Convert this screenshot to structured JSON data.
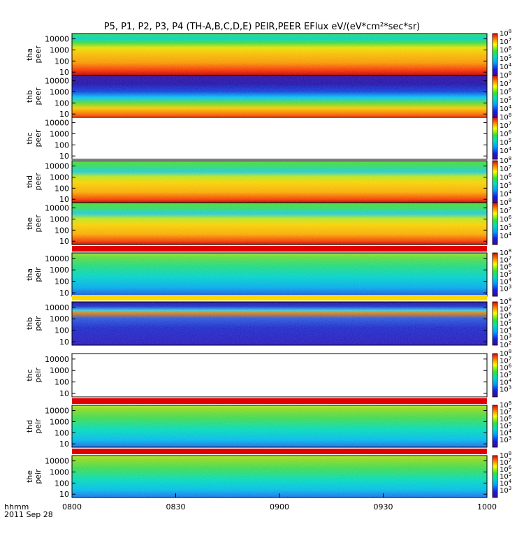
{
  "title": "P5, P1, P2, P3, P4 (TH-A,B,C,D,E) PEIR,PEER EFlux eV/(eV*cm²*sec*sr)",
  "chart_data": {
    "type": "heatmap",
    "time_axis": {
      "label": "hhmm",
      "date": "2011 Sep 28",
      "range": [
        "0800",
        "1000"
      ],
      "ticks": [
        "0800",
        "0830",
        "0900",
        "0930",
        "1000"
      ]
    },
    "energy_axis": {
      "scale": "log",
      "range_eV": [
        5,
        30000
      ],
      "ticks": [
        "10",
        "100",
        "1000",
        "10000"
      ]
    },
    "colormap": "rainbow (purple-blue-cyan-green-yellow-red)",
    "panels": [
      {
        "probe": "tha",
        "species": "peer",
        "label": "tha\npeer",
        "colorbar_log_range": [
          3,
          8
        ],
        "colorbar_ticks": [
          "10^4",
          "10^5",
          "10^6",
          "10^7",
          "10^8"
        ],
        "fill": "present"
      },
      {
        "probe": "thb",
        "species": "peer",
        "label": "thb\npeer",
        "colorbar_log_range": [
          3,
          8
        ],
        "colorbar_ticks": [
          "10^4",
          "10^5",
          "10^6",
          "10^7",
          "10^8"
        ],
        "fill": "present"
      },
      {
        "probe": "thc",
        "species": "peer",
        "label": "thc\npeer",
        "colorbar_log_range": [
          3,
          8
        ],
        "colorbar_ticks": [
          "10^4",
          "10^5",
          "10^6",
          "10^7",
          "10^8"
        ],
        "fill": "empty"
      },
      {
        "probe": "thd",
        "species": "peer",
        "label": "thd\npeer",
        "colorbar_log_range": [
          3,
          8
        ],
        "colorbar_ticks": [
          "10^4",
          "10^5",
          "10^6",
          "10^7",
          "10^8"
        ],
        "fill": "present"
      },
      {
        "probe": "the",
        "species": "peer",
        "label": "the\npeer",
        "colorbar_log_range": [
          3,
          8
        ],
        "colorbar_ticks": [
          "10^4",
          "10^5",
          "10^6",
          "10^7",
          "10^8"
        ],
        "fill": "present"
      },
      {
        "probe": "tha",
        "species": "peir",
        "label": "tha\npeir",
        "colorbar_log_range": [
          2,
          8
        ],
        "colorbar_ticks": [
          "10^3",
          "10^4",
          "10^5",
          "10^6",
          "10^7",
          "10^8"
        ],
        "fill": "present"
      },
      {
        "probe": "thb",
        "species": "peir",
        "label": "thb\npeir",
        "colorbar_log_range": [
          2,
          8
        ],
        "colorbar_ticks": [
          "10^2",
          "10^3",
          "10^4",
          "10^5",
          "10^6",
          "10^7",
          "10^8"
        ],
        "fill": "present"
      },
      {
        "probe": "thc",
        "species": "peir",
        "label": "thc\npeir",
        "colorbar_log_range": [
          2,
          8
        ],
        "colorbar_ticks": [
          "10^3",
          "10^4",
          "10^5",
          "10^6",
          "10^7",
          "10^8"
        ],
        "fill": "empty"
      },
      {
        "probe": "thd",
        "species": "peir",
        "label": "thd\npeir",
        "colorbar_log_range": [
          2,
          8
        ],
        "colorbar_ticks": [
          "10^3",
          "10^4",
          "10^5",
          "10^6",
          "10^7",
          "10^8"
        ],
        "fill": "present"
      },
      {
        "probe": "the",
        "species": "peir",
        "label": "the\npeir",
        "colorbar_log_range": [
          2,
          8
        ],
        "colorbar_ticks": [
          "10^3",
          "10^4",
          "10^5",
          "10^6",
          "10^7",
          "10^8"
        ],
        "fill": "present"
      }
    ]
  }
}
